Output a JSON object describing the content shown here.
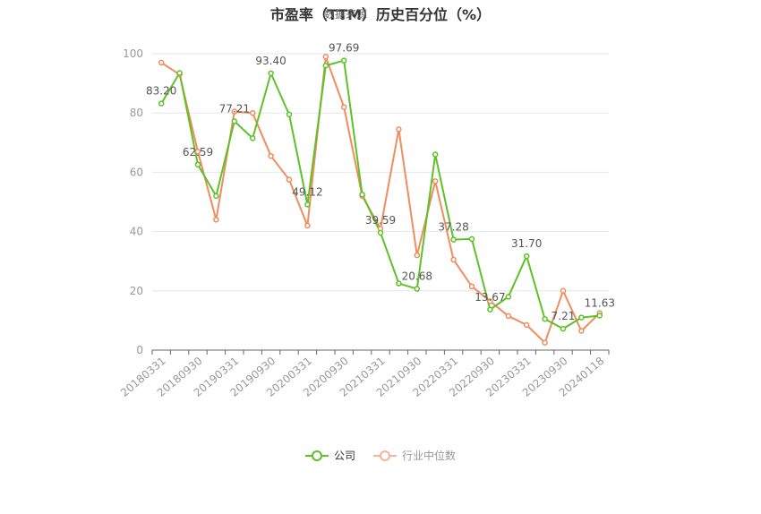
{
  "title": "市盈率（TTM）历史百分位（%）",
  "watermark": "数据来源",
  "chart_data": {
    "type": "line",
    "y_ticks": [
      "0",
      "20",
      "40",
      "60",
      "80",
      "100"
    ],
    "x_tick_labels": [
      "20180331",
      "20180930",
      "20190331",
      "20190930",
      "20200331",
      "20200930",
      "20210331",
      "20210930",
      "20220331",
      "20220930",
      "20230331",
      "20230930",
      "20240118"
    ],
    "ylim": [
      0,
      100
    ],
    "grid": true,
    "legend_position": "bottom",
    "series": [
      {
        "name": "公司",
        "color": "#5ec127",
        "values": [
          83.2,
          93.5,
          62.59,
          52.0,
          77.21,
          71.5,
          93.4,
          79.5,
          49.12,
          96.0,
          97.69,
          52.5,
          39.59,
          22.5,
          20.68,
          66.0,
          37.28,
          37.5,
          13.67,
          18.0,
          31.7,
          10.5,
          7.21,
          11.0,
          11.63
        ]
      },
      {
        "name": "行业中位数",
        "color": "#f08c5e",
        "values": [
          97.0,
          93.0,
          67.0,
          44.0,
          80.5,
          80.0,
          65.5,
          57.5,
          42.0,
          99.0,
          82.0,
          52.0,
          41.0,
          74.5,
          32.0,
          57.0,
          30.5,
          21.5,
          16.5,
          11.5,
          8.5,
          2.5,
          20.0,
          6.5,
          12.5
        ]
      }
    ],
    "data_labels": [
      {
        "index": 0,
        "text": "83.20"
      },
      {
        "index": 2,
        "text": "62.59"
      },
      {
        "index": 4,
        "text": "77.21"
      },
      {
        "index": 6,
        "text": "93.40"
      },
      {
        "index": 8,
        "text": "49.12"
      },
      {
        "index": 10,
        "text": "97.69"
      },
      {
        "index": 12,
        "text": "39.59"
      },
      {
        "index": 14,
        "text": "20.68"
      },
      {
        "index": 16,
        "text": "37.28"
      },
      {
        "index": 18,
        "text": "13.67"
      },
      {
        "index": 20,
        "text": "31.70"
      },
      {
        "index": 22,
        "text": "7.21"
      },
      {
        "index": 24,
        "text": "11.63"
      }
    ]
  }
}
